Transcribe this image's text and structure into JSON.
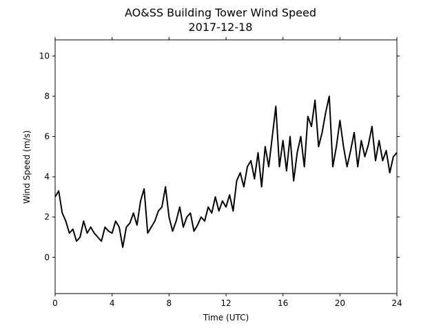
{
  "chart_data": {
    "type": "line",
    "title": "AO&SS Building Tower Wind Speed",
    "subtitle": "2017-12-18",
    "x_label": "Time (UTC)",
    "y_label": "Wind Speed (m/s)",
    "xlim": [
      0,
      24
    ],
    "xticks": [
      0,
      4,
      8,
      12,
      16,
      20,
      24
    ],
    "ylim": [
      -1.8,
      10.8
    ],
    "yticks": [
      0,
      2,
      4,
      6,
      8,
      10
    ],
    "grid": false,
    "series": [
      {
        "name": "Wind Speed",
        "color": "#000000",
        "x": [
          0,
          0.25,
          0.5,
          0.75,
          1,
          1.25,
          1.5,
          1.75,
          2,
          2.25,
          2.5,
          2.75,
          3,
          3.25,
          3.5,
          3.75,
          4,
          4.25,
          4.5,
          4.75,
          5,
          5.25,
          5.5,
          5.75,
          6,
          6.25,
          6.5,
          6.75,
          7,
          7.25,
          7.5,
          7.75,
          8,
          8.25,
          8.5,
          8.75,
          9,
          9.25,
          9.5,
          9.75,
          10,
          10.25,
          10.5,
          10.75,
          11,
          11.25,
          11.5,
          11.75,
          12,
          12.25,
          12.5,
          12.75,
          13,
          13.25,
          13.5,
          13.75,
          14,
          14.25,
          14.5,
          14.75,
          15,
          15.25,
          15.5,
          15.75,
          16,
          16.25,
          16.5,
          16.75,
          17,
          17.25,
          17.5,
          17.75,
          18,
          18.25,
          18.5,
          18.75,
          19,
          19.25,
          19.5,
          19.75,
          20,
          20.25,
          20.5,
          20.75,
          21,
          21.25,
          21.5,
          21.75,
          22,
          22.25,
          22.5,
          22.75,
          23,
          23.25,
          23.5,
          23.75,
          24
        ],
        "values": [
          3.0,
          3.3,
          2.2,
          1.8,
          1.2,
          1.4,
          0.8,
          1.0,
          1.8,
          1.2,
          1.5,
          1.2,
          1.0,
          0.8,
          1.5,
          1.3,
          1.2,
          1.8,
          1.5,
          0.5,
          1.5,
          1.7,
          2.2,
          1.6,
          2.8,
          3.4,
          1.2,
          1.5,
          1.8,
          2.3,
          2.5,
          3.5,
          2.0,
          1.3,
          1.8,
          2.5,
          1.5,
          2.0,
          2.2,
          1.3,
          1.6,
          2.0,
          1.8,
          2.5,
          2.2,
          3.0,
          2.3,
          2.8,
          2.5,
          3.1,
          2.3,
          3.8,
          4.2,
          3.5,
          4.5,
          4.8,
          3.9,
          5.2,
          3.5,
          5.5,
          4.5,
          6.0,
          7.5,
          4.5,
          5.8,
          4.3,
          6.0,
          3.8,
          5.2,
          6.0,
          4.5,
          7.0,
          6.5,
          7.8,
          5.5,
          6.2,
          7.2,
          8.0,
          4.5,
          5.5,
          6.8,
          5.5,
          4.5,
          5.3,
          6.2,
          4.5,
          5.8,
          5.0,
          5.6,
          6.5,
          4.8,
          5.8,
          4.8,
          5.3,
          4.2,
          5.0,
          5.2
        ]
      }
    ]
  }
}
